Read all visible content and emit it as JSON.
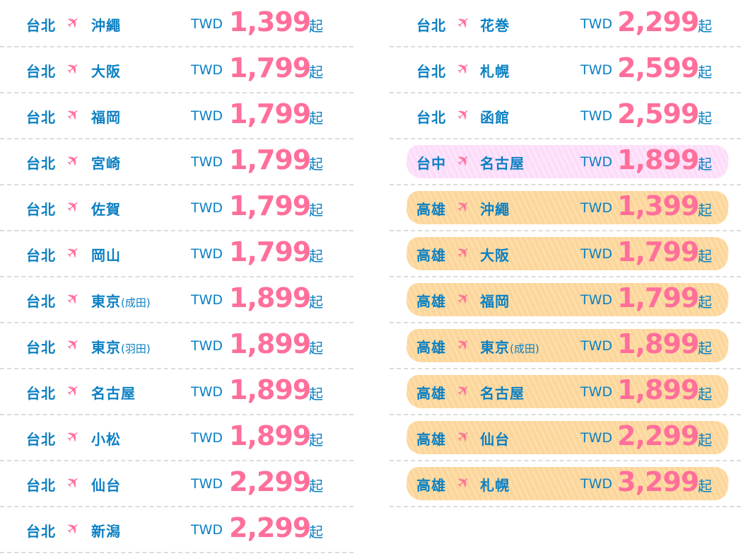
{
  "colors": {
    "text": "#0b80c3",
    "price": "#ff6f9a",
    "highlight_orange": "#fcd69a",
    "highlight_pink": "#fddcfa"
  },
  "currency": "TWD",
  "suffix": "起",
  "icon": "airplane-icon",
  "left": [
    {
      "from": "台北",
      "to": "沖繩",
      "note": "",
      "price": "1,399"
    },
    {
      "from": "台北",
      "to": "大阪",
      "note": "",
      "price": "1,799"
    },
    {
      "from": "台北",
      "to": "福岡",
      "note": "",
      "price": "1,799"
    },
    {
      "from": "台北",
      "to": "宮崎",
      "note": "",
      "price": "1,799"
    },
    {
      "from": "台北",
      "to": "佐賀",
      "note": "",
      "price": "1,799"
    },
    {
      "from": "台北",
      "to": "岡山",
      "note": "",
      "price": "1,799"
    },
    {
      "from": "台北",
      "to": "東京",
      "note": "(成田)",
      "price": "1,899"
    },
    {
      "from": "台北",
      "to": "東京",
      "note": "(羽田)",
      "price": "1,899"
    },
    {
      "from": "台北",
      "to": "名古屋",
      "note": "",
      "price": "1,899"
    },
    {
      "from": "台北",
      "to": "小松",
      "note": "",
      "price": "1,899"
    },
    {
      "from": "台北",
      "to": "仙台",
      "note": "",
      "price": "2,299"
    },
    {
      "from": "台北",
      "to": "新潟",
      "note": "",
      "price": "2,299"
    }
  ],
  "right": [
    {
      "from": "台北",
      "to": "花巻",
      "note": "",
      "price": "2,299",
      "highlight": ""
    },
    {
      "from": "台北",
      "to": "札幌",
      "note": "",
      "price": "2,599",
      "highlight": ""
    },
    {
      "from": "台北",
      "to": "函館",
      "note": "",
      "price": "2,599",
      "highlight": ""
    },
    {
      "from": "台中",
      "to": "名古屋",
      "note": "",
      "price": "1,899",
      "highlight": "pink"
    },
    {
      "from": "高雄",
      "to": "沖繩",
      "note": "",
      "price": "1,399",
      "highlight": "orange"
    },
    {
      "from": "高雄",
      "to": "大阪",
      "note": "",
      "price": "1,799",
      "highlight": "orange"
    },
    {
      "from": "高雄",
      "to": "福岡",
      "note": "",
      "price": "1,799",
      "highlight": "orange"
    },
    {
      "from": "高雄",
      "to": "東京",
      "note": "(成田)",
      "price": "1,899",
      "highlight": "orange"
    },
    {
      "from": "高雄",
      "to": "名古屋",
      "note": "",
      "price": "1,899",
      "highlight": "orange"
    },
    {
      "from": "高雄",
      "to": "仙台",
      "note": "",
      "price": "2,299",
      "highlight": "orange"
    },
    {
      "from": "高雄",
      "to": "札幌",
      "note": "",
      "price": "3,299",
      "highlight": "orange"
    }
  ]
}
